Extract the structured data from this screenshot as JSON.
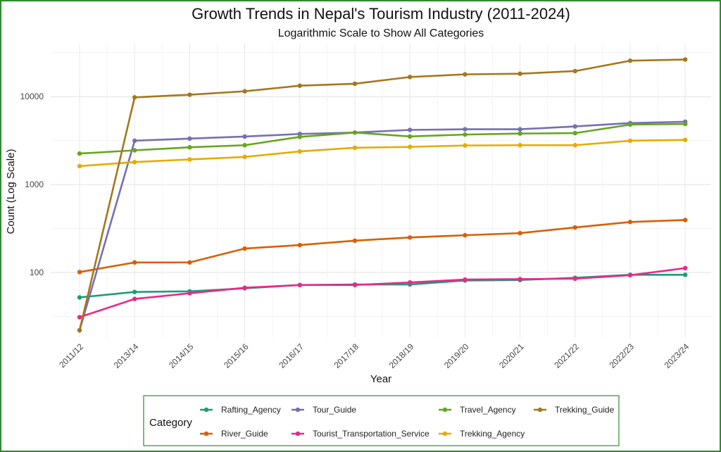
{
  "chart_data": {
    "type": "line",
    "title": "Growth Trends in Nepal's Tourism Industry (2011-2024)",
    "subtitle": "Logarithmic Scale to Show All Categories",
    "xlabel": "Year",
    "ylabel": "Count (Log Scale)",
    "yscale": "log",
    "ylim": [
      18,
      40000
    ],
    "yticks": [
      100,
      1000,
      10000
    ],
    "ytick_labels": [
      "100",
      "1000",
      "10000"
    ],
    "grid": true,
    "legend_title": "Category",
    "legend_position": "bottom",
    "categories": [
      "2011/12",
      "2013/14",
      "2014/15",
      "2015/16",
      "2016/17",
      "2017/18",
      "2018/19",
      "2019/20",
      "2020/21",
      "2021/22",
      "2022/23",
      "2023/24"
    ],
    "series": [
      {
        "name": "Rafting_Agency",
        "color": "#1b9e77",
        "values": [
          52,
          60,
          61,
          66,
          72,
          73,
          73,
          81,
          82,
          87,
          94,
          94
        ]
      },
      {
        "name": "River_Guide",
        "color": "#d95f02",
        "values": [
          101,
          130,
          130,
          187,
          205,
          230,
          250,
          265,
          280,
          325,
          375,
          395
        ]
      },
      {
        "name": "Tour_Guide",
        "color": "#7570b3",
        "values": [
          22,
          3150,
          3330,
          3510,
          3760,
          3900,
          4180,
          4250,
          4250,
          4580,
          5000,
          5180
        ]
      },
      {
        "name": "Tourist_Transportation_Service",
        "color": "#e7298a",
        "values": [
          31,
          50,
          58,
          67,
          72,
          72,
          77,
          83,
          84,
          85,
          93,
          112
        ]
      },
      {
        "name": "Travel_Agency",
        "color": "#66a61e",
        "values": [
          2250,
          2450,
          2650,
          2800,
          3480,
          3900,
          3520,
          3700,
          3800,
          3840,
          4800,
          4880
        ]
      },
      {
        "name": "Trekking_Agency",
        "color": "#e6ab02",
        "values": [
          1620,
          1800,
          1930,
          2060,
          2380,
          2620,
          2680,
          2780,
          2800,
          2800,
          3150,
          3220
        ]
      },
      {
        "name": "Trekking_Guide",
        "color": "#a6761d",
        "values": [
          22,
          9800,
          10500,
          11500,
          13300,
          14000,
          16700,
          17900,
          18200,
          19500,
          25600,
          26400
        ]
      }
    ]
  }
}
